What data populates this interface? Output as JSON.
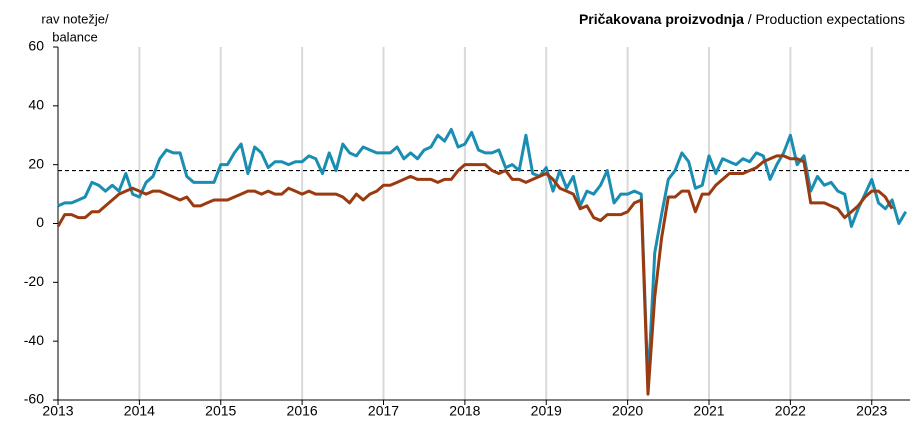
{
  "chart_data": {
    "type": "line",
    "title": "Pričakovana proizvodnja",
    "title_en": "/ Production expectations",
    "ylabel": [
      "rav notežje/",
      "balance"
    ],
    "x": [
      2013,
      2013.083,
      2013.167,
      2013.25,
      2013.333,
      2013.417,
      2013.5,
      2013.583,
      2013.667,
      2013.75,
      2013.833,
      2013.917,
      2014,
      2014.083,
      2014.167,
      2014.25,
      2014.333,
      2014.417,
      2014.5,
      2014.583,
      2014.667,
      2014.75,
      2014.833,
      2014.917,
      2015,
      2015.083,
      2015.167,
      2015.25,
      2015.333,
      2015.417,
      2015.5,
      2015.583,
      2015.667,
      2015.75,
      2015.833,
      2015.917,
      2016,
      2016.083,
      2016.167,
      2016.25,
      2016.333,
      2016.417,
      2016.5,
      2016.583,
      2016.667,
      2016.75,
      2016.833,
      2016.917,
      2017,
      2017.083,
      2017.167,
      2017.25,
      2017.333,
      2017.417,
      2017.5,
      2017.583,
      2017.667,
      2017.75,
      2017.833,
      2017.917,
      2018,
      2018.083,
      2018.167,
      2018.25,
      2018.333,
      2018.417,
      2018.5,
      2018.583,
      2018.667,
      2018.75,
      2018.833,
      2018.917,
      2019,
      2019.083,
      2019.167,
      2019.25,
      2019.333,
      2019.417,
      2019.5,
      2019.583,
      2019.667,
      2019.75,
      2019.833,
      2019.917,
      2020,
      2020.083,
      2020.167,
      2020.25,
      2020.333,
      2020.417,
      2020.5,
      2020.583,
      2020.667,
      2020.75,
      2020.833,
      2020.917,
      2021,
      2021.083,
      2021.167,
      2021.25,
      2021.333,
      2021.417,
      2021.5,
      2021.583,
      2021.667,
      2021.75,
      2021.833,
      2021.917,
      2022,
      2022.083,
      2022.167,
      2022.25,
      2022.333,
      2022.417,
      2022.5,
      2022.583,
      2022.667,
      2022.75,
      2022.833,
      2022.917,
      2023,
      2023.083,
      2023.167,
      2023.25,
      2023.333,
      2023.417
    ],
    "series": [
      {
        "color": "#1a8db3",
        "values": [
          6,
          7,
          7,
          8,
          9,
          14,
          13,
          11,
          13,
          11,
          17,
          10,
          9,
          14,
          16,
          22,
          25,
          24,
          24,
          16,
          14,
          14,
          14,
          14,
          20,
          20,
          24,
          27,
          17,
          26,
          24,
          19,
          21,
          21,
          20,
          21,
          21,
          23,
          22,
          17,
          24,
          18,
          27,
          24,
          23,
          26,
          25,
          24,
          24,
          24,
          26,
          22,
          24,
          22,
          25,
          26,
          30,
          28,
          32,
          26,
          27,
          31,
          25,
          24,
          24,
          25,
          19,
          20,
          18,
          30,
          17,
          16,
          19,
          11,
          18,
          12,
          16,
          6,
          11,
          10,
          13,
          18,
          7,
          10,
          10,
          11,
          10,
          -55,
          -10,
          3,
          15,
          18,
          24,
          21,
          12,
          13,
          23,
          17,
          22,
          21,
          20,
          22,
          21,
          24,
          23,
          15,
          20,
          24,
          30,
          20,
          23,
          11,
          16,
          13,
          14,
          11,
          10,
          -1,
          5,
          10,
          15,
          7,
          5,
          8,
          0,
          4
        ]
      },
      {
        "color": "#9a3a10",
        "values": [
          -1,
          3,
          3,
          2,
          2,
          4,
          4,
          6,
          8,
          10,
          11,
          12,
          11,
          10,
          11,
          11,
          10,
          9,
          8,
          9,
          6,
          6,
          7,
          8,
          8,
          8,
          9,
          10,
          11,
          11,
          10,
          11,
          10,
          10,
          12,
          11,
          10,
          11,
          10,
          10,
          10,
          10,
          9,
          7,
          10,
          8,
          10,
          11,
          13,
          13,
          14,
          15,
          16,
          15,
          15,
          15,
          14,
          15,
          15,
          18,
          20,
          20,
          20,
          20,
          18,
          17,
          18,
          15,
          15,
          14,
          15,
          16,
          17,
          15,
          12,
          11,
          10,
          5,
          6,
          2,
          1,
          3,
          3,
          3,
          4,
          7,
          8,
          -58,
          -25,
          -5,
          9,
          9,
          11,
          11,
          4,
          10,
          10,
          13,
          15,
          17,
          17,
          17,
          18,
          19,
          21,
          22,
          23,
          23,
          22,
          22,
          21,
          7,
          7,
          7,
          6,
          5,
          2,
          4,
          6,
          9,
          11,
          11,
          9,
          5,
          null,
          null
        ]
      }
    ],
    "reference_line": 18,
    "xlim": [
      2013,
      2023.47
    ],
    "xticks": [
      2013,
      2014,
      2015,
      2016,
      2017,
      2018,
      2019,
      2020,
      2021,
      2022,
      2023
    ],
    "ylim": [
      -60,
      60
    ],
    "yticks": [
      -60,
      -40,
      -20,
      0,
      20,
      40,
      60
    ],
    "grid": "x"
  }
}
